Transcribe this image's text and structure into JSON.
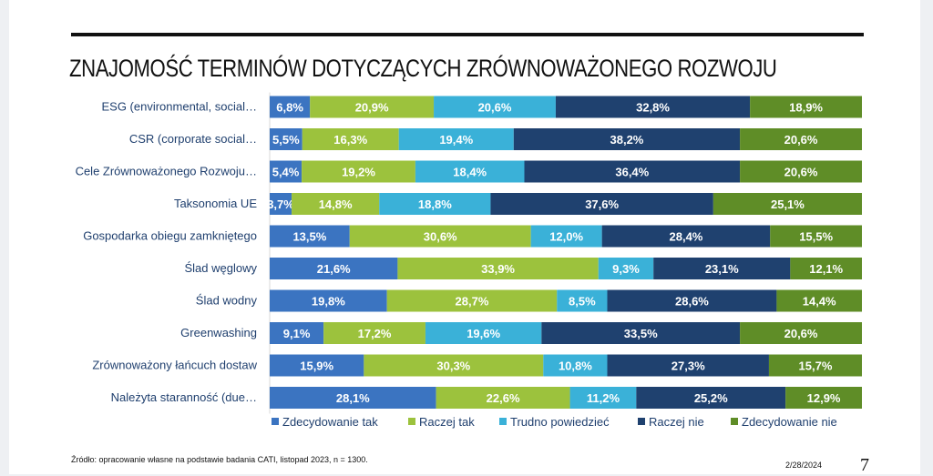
{
  "chart_data": {
    "type": "bar",
    "stacked": true,
    "orientation": "horizontal",
    "title": "ZNAJOMOŚĆ TERMINÓW DOTYCZĄCYCH ZRÓWNOWAŻONEGO ROZWOJU",
    "categories": [
      "ESG (environmental, social…",
      "CSR (corporate social…",
      "Cele Zrównoważonego Rozwoju…",
      "Taksonomia UE",
      "Gospodarka obiegu zamkniętego",
      "Ślad węglowy",
      "Ślad wodny",
      "Greenwashing",
      "Zrównoważony łańcuch dostaw",
      "Należyta staranność (due…"
    ],
    "series": [
      {
        "name": "Zdecydowanie tak",
        "color": "#3b74c1",
        "values": [
          6.8,
          5.5,
          5.4,
          3.7,
          13.5,
          21.6,
          19.8,
          9.1,
          15.9,
          28.1
        ]
      },
      {
        "name": "Raczej tak",
        "color": "#9cc23d",
        "values": [
          20.9,
          16.3,
          19.2,
          14.8,
          30.6,
          33.9,
          28.7,
          17.2,
          30.3,
          22.6
        ]
      },
      {
        "name": "Trudno powiedzieć",
        "color": "#3ab1d8",
        "values": [
          20.6,
          19.4,
          18.4,
          18.8,
          12.0,
          9.3,
          8.5,
          19.6,
          10.8,
          11.2
        ]
      },
      {
        "name": "Raczej nie",
        "color": "#1f416f",
        "values": [
          32.8,
          38.2,
          36.4,
          37.6,
          28.4,
          23.1,
          28.6,
          33.5,
          27.3,
          25.2
        ]
      },
      {
        "name": "Zdecydowanie nie",
        "color": "#5f8d27",
        "values": [
          18.9,
          20.6,
          20.6,
          25.1,
          15.5,
          12.1,
          14.4,
          20.6,
          15.7,
          12.9
        ]
      }
    ],
    "value_format": "comma-decimal-percent",
    "legend": "bottom",
    "grid": false
  },
  "footer": {
    "source": "Źródło: opracowanie własne na podstawie badania CATI, listopad 2023, n = 1300.",
    "date": "2/28/2024",
    "page": "7"
  }
}
